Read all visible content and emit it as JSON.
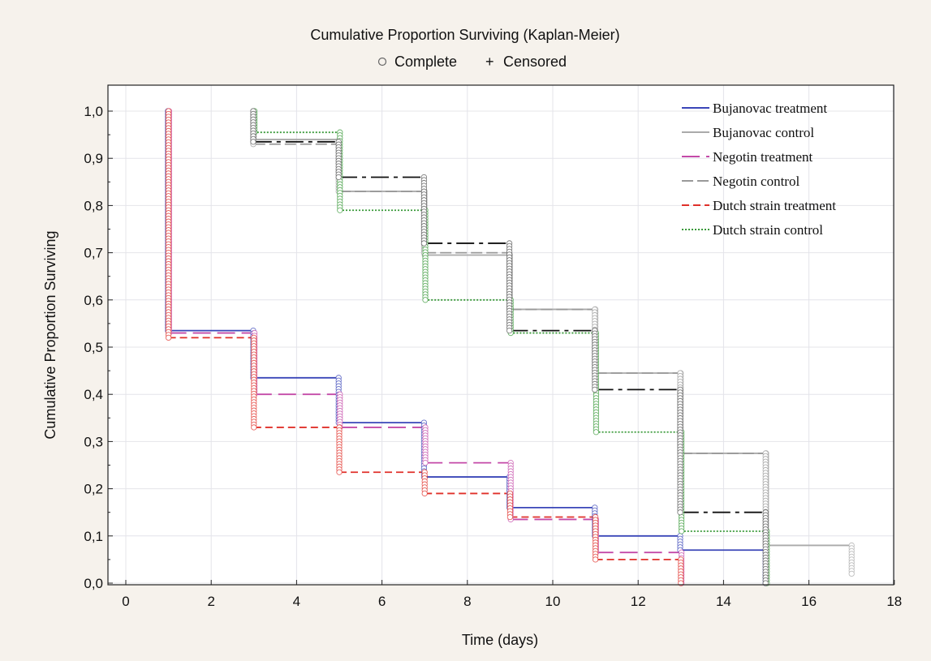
{
  "chart_data": {
    "type": "line",
    "title": "Cumulative Proportion Surviving (Kaplan-Meier)",
    "subtitle_complete": "Complete",
    "subtitle_censored": "Censored",
    "xlabel": "Time (days)",
    "ylabel": "Cumulative Proportion Surviving",
    "xlim": [
      0,
      18
    ],
    "ylim": [
      0,
      1.05
    ],
    "xticks": [
      0,
      2,
      4,
      6,
      8,
      10,
      12,
      14,
      16,
      18
    ],
    "xtick_labels": [
      "0",
      "2",
      "4",
      "6",
      "8",
      "10",
      "12",
      "14",
      "16",
      "18"
    ],
    "yticks": [
      0,
      0.1,
      0.2,
      0.3,
      0.4,
      0.5,
      0.6,
      0.7,
      0.8,
      0.9,
      1.0
    ],
    "ytick_labels": [
      "0,0",
      "0,1",
      "0,2",
      "0,3",
      "0,4",
      "0,5",
      "0,6",
      "0,7",
      "0,8",
      "0,9",
      "1,0"
    ],
    "grid": true,
    "legend_position": "top-right",
    "series": [
      {
        "name": "Bujanovac treatment",
        "color": "#3a46b8",
        "dash": "",
        "steps": [
          [
            1,
            0.535
          ],
          [
            3,
            0.435
          ],
          [
            5,
            0.34
          ],
          [
            7,
            0.225
          ],
          [
            9,
            0.16
          ],
          [
            11,
            0.1
          ],
          [
            13,
            0.07
          ],
          [
            15,
            0.0
          ]
        ],
        "end": 15
      },
      {
        "name": "Bujanovac control",
        "color": "#aaaaaa",
        "dash": "",
        "steps": [
          [
            3,
            0.94
          ],
          [
            5,
            0.83
          ],
          [
            7,
            0.695
          ],
          [
            9,
            0.58
          ],
          [
            11,
            0.445
          ],
          [
            13,
            0.275
          ],
          [
            15,
            0.08
          ],
          [
            17,
            0.02
          ]
        ],
        "end": 17
      },
      {
        "name": "Negotin treatment",
        "color": "#c44aa8",
        "dash": "22,8",
        "steps": [
          [
            1,
            0.53
          ],
          [
            3,
            0.4
          ],
          [
            5,
            0.33
          ],
          [
            7,
            0.255
          ],
          [
            9,
            0.135
          ],
          [
            11,
            0.065
          ],
          [
            13,
            0.0
          ]
        ],
        "end": 13
      },
      {
        "name": "Negotin control",
        "color": "#999999",
        "dash": "14,5",
        "steps": [
          [
            3,
            0.93
          ],
          [
            5,
            0.83
          ],
          [
            7,
            0.7
          ],
          [
            9,
            0.58
          ],
          [
            11,
            0.445
          ],
          [
            13,
            0.275
          ],
          [
            15,
            0.08
          ]
        ],
        "end": 17
      },
      {
        "name": "Dutch strain treatment",
        "color": "#e0302a",
        "dash": "9,5",
        "steps": [
          [
            1,
            0.52
          ],
          [
            3,
            0.33
          ],
          [
            5,
            0.235
          ],
          [
            7,
            0.19
          ],
          [
            9,
            0.14
          ],
          [
            11,
            0.05
          ],
          [
            13,
            0.0
          ]
        ],
        "end": 13
      },
      {
        "name": "Dutch strain control",
        "color": "#3a9a3a",
        "dash": "2,2",
        "steps": [
          [
            3,
            0.955
          ],
          [
            5,
            0.79
          ],
          [
            7,
            0.6
          ],
          [
            9,
            0.53
          ],
          [
            11,
            0.32
          ],
          [
            13,
            0.11
          ],
          [
            15,
            0.0
          ]
        ],
        "end": 15
      },
      {
        "name": "",
        "color": "#111111",
        "dash": "22,6,5,6",
        "legend": false,
        "steps": [
          [
            3,
            0.935
          ],
          [
            5,
            0.86
          ],
          [
            7,
            0.72
          ],
          [
            9,
            0.535
          ],
          [
            11,
            0.41
          ],
          [
            13,
            0.15
          ],
          [
            15,
            0.0
          ]
        ],
        "end": 15
      }
    ]
  }
}
